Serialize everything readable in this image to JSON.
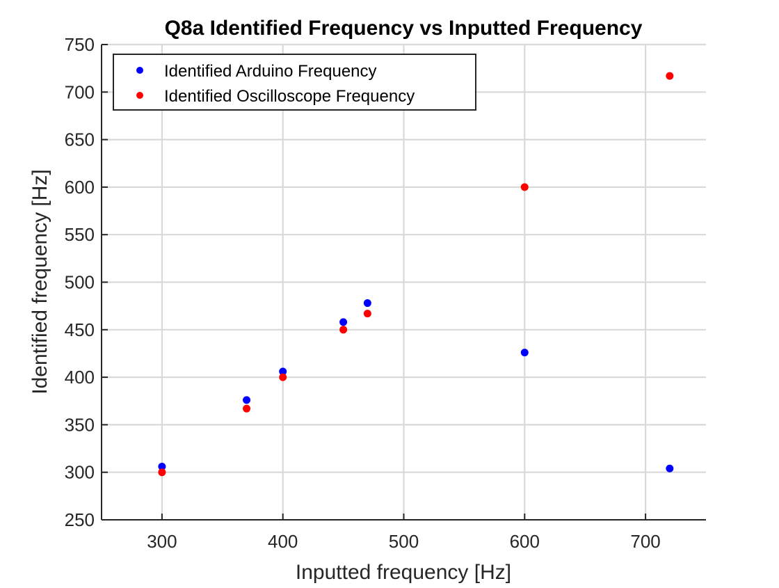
{
  "chart_data": {
    "type": "scatter",
    "title": "Q8a Identified Frequency vs Inputted Frequency",
    "xlabel": "Inputted frequency [Hz]",
    "ylabel": "Identified frequency [Hz]",
    "xlim": [
      250,
      750
    ],
    "ylim": [
      250,
      750
    ],
    "xticks": [
      "300",
      "400",
      "500",
      "600",
      "700"
    ],
    "yticks": [
      "250",
      "300",
      "350",
      "400",
      "450",
      "500",
      "550",
      "600",
      "650",
      "700",
      "750"
    ],
    "grid": true,
    "legend_position": "top-left",
    "series": [
      {
        "name": "Identified Arduino Frequency",
        "color": "#0000ff",
        "points": [
          {
            "x": 300,
            "y": 306
          },
          {
            "x": 370,
            "y": 376
          },
          {
            "x": 400,
            "y": 406
          },
          {
            "x": 450,
            "y": 458
          },
          {
            "x": 470,
            "y": 478
          },
          {
            "x": 600,
            "y": 426
          },
          {
            "x": 720,
            "y": 304
          }
        ]
      },
      {
        "name": "Identified Oscilloscope Frequency",
        "color": "#ff0000",
        "points": [
          {
            "x": 300,
            "y": 300
          },
          {
            "x": 370,
            "y": 367
          },
          {
            "x": 400,
            "y": 400
          },
          {
            "x": 450,
            "y": 450
          },
          {
            "x": 470,
            "y": 467
          },
          {
            "x": 600,
            "y": 600
          },
          {
            "x": 720,
            "y": 717
          }
        ]
      }
    ]
  }
}
